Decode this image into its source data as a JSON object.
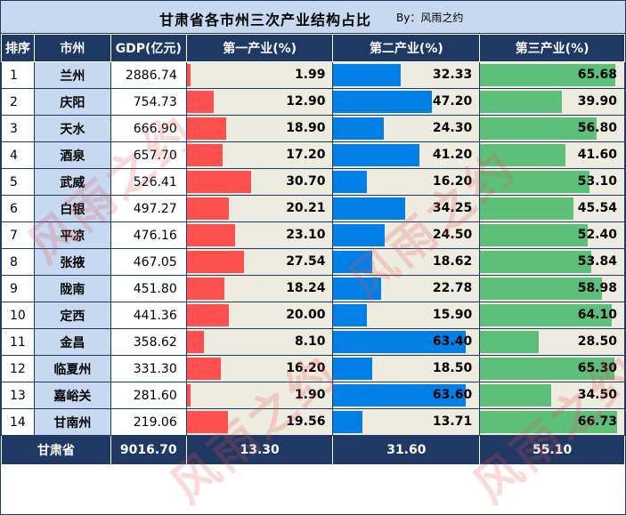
{
  "title": "甘肃省各市州三次产业结构占比",
  "byline": "By：风雨之约",
  "watermark": "风雨之约",
  "colors": {
    "primary": "#ff5050",
    "secondary": "#0080e6",
    "tertiary": "#5cbf7a"
  },
  "headers": [
    "排序",
    "市州",
    "GDP(亿元)",
    "第一产业(%)",
    "第二产业(%)",
    "第三产业(%)"
  ],
  "chart_data": {
    "type": "table",
    "rows": [
      {
        "rank": "1",
        "city": "兰州",
        "gdp": "2886.74",
        "p1": 1.99,
        "p2": 32.33,
        "p3": 65.68,
        "p1t": "1.99",
        "p2t": "32.33",
        "p3t": "65.68"
      },
      {
        "rank": "2",
        "city": "庆阳",
        "gdp": "754.73",
        "p1": 12.9,
        "p2": 47.2,
        "p3": 39.9,
        "p1t": "12.90",
        "p2t": "47.20",
        "p3t": "39.90"
      },
      {
        "rank": "3",
        "city": "天水",
        "gdp": "666.90",
        "p1": 18.9,
        "p2": 24.3,
        "p3": 56.8,
        "p1t": "18.90",
        "p2t": "24.30",
        "p3t": "56.80"
      },
      {
        "rank": "4",
        "city": "酒泉",
        "gdp": "657.70",
        "p1": 17.2,
        "p2": 41.2,
        "p3": 41.6,
        "p1t": "17.20",
        "p2t": "41.20",
        "p3t": "41.60"
      },
      {
        "rank": "5",
        "city": "武威",
        "gdp": "526.41",
        "p1": 30.7,
        "p2": 16.2,
        "p3": 53.1,
        "p1t": "30.70",
        "p2t": "16.20",
        "p3t": "53.10"
      },
      {
        "rank": "6",
        "city": "白银",
        "gdp": "497.27",
        "p1": 20.21,
        "p2": 34.25,
        "p3": 45.54,
        "p1t": "20.21",
        "p2t": "34.25",
        "p3t": "45.54"
      },
      {
        "rank": "7",
        "city": "平凉",
        "gdp": "476.16",
        "p1": 23.1,
        "p2": 24.5,
        "p3": 52.4,
        "p1t": "23.10",
        "p2t": "24.50",
        "p3t": "52.40"
      },
      {
        "rank": "8",
        "city": "张掖",
        "gdp": "467.05",
        "p1": 27.54,
        "p2": 18.62,
        "p3": 53.84,
        "p1t": "27.54",
        "p2t": "18.62",
        "p3t": "53.84"
      },
      {
        "rank": "9",
        "city": "陇南",
        "gdp": "451.80",
        "p1": 18.24,
        "p2": 22.78,
        "p3": 58.98,
        "p1t": "18.24",
        "p2t": "22.78",
        "p3t": "58.98"
      },
      {
        "rank": "10",
        "city": "定西",
        "gdp": "441.36",
        "p1": 20.0,
        "p2": 15.9,
        "p3": 64.1,
        "p1t": "20.00",
        "p2t": "15.90",
        "p3t": "64.10"
      },
      {
        "rank": "11",
        "city": "金昌",
        "gdp": "358.62",
        "p1": 8.1,
        "p2": 63.4,
        "p3": 28.5,
        "p1t": "8.10",
        "p2t": "63.40",
        "p3t": "28.50"
      },
      {
        "rank": "12",
        "city": "临夏州",
        "gdp": "331.30",
        "p1": 16.2,
        "p2": 18.5,
        "p3": 65.3,
        "p1t": "16.20",
        "p2t": "18.50",
        "p3t": "65.30"
      },
      {
        "rank": "13",
        "city": "嘉峪关",
        "gdp": "281.60",
        "p1": 1.9,
        "p2": 63.6,
        "p3": 34.5,
        "p1t": "1.90",
        "p2t": "63.60",
        "p3t": "34.50"
      },
      {
        "rank": "14",
        "city": "甘南州",
        "gdp": "219.06",
        "p1": 19.56,
        "p2": 13.71,
        "p3": 66.73,
        "p1t": "19.56",
        "p2t": "13.71",
        "p3t": "66.73"
      }
    ],
    "total": {
      "label": "甘肃省",
      "gdp": "9016.70",
      "p1": "13.30",
      "p2": "31.60",
      "p3": "55.10"
    }
  }
}
